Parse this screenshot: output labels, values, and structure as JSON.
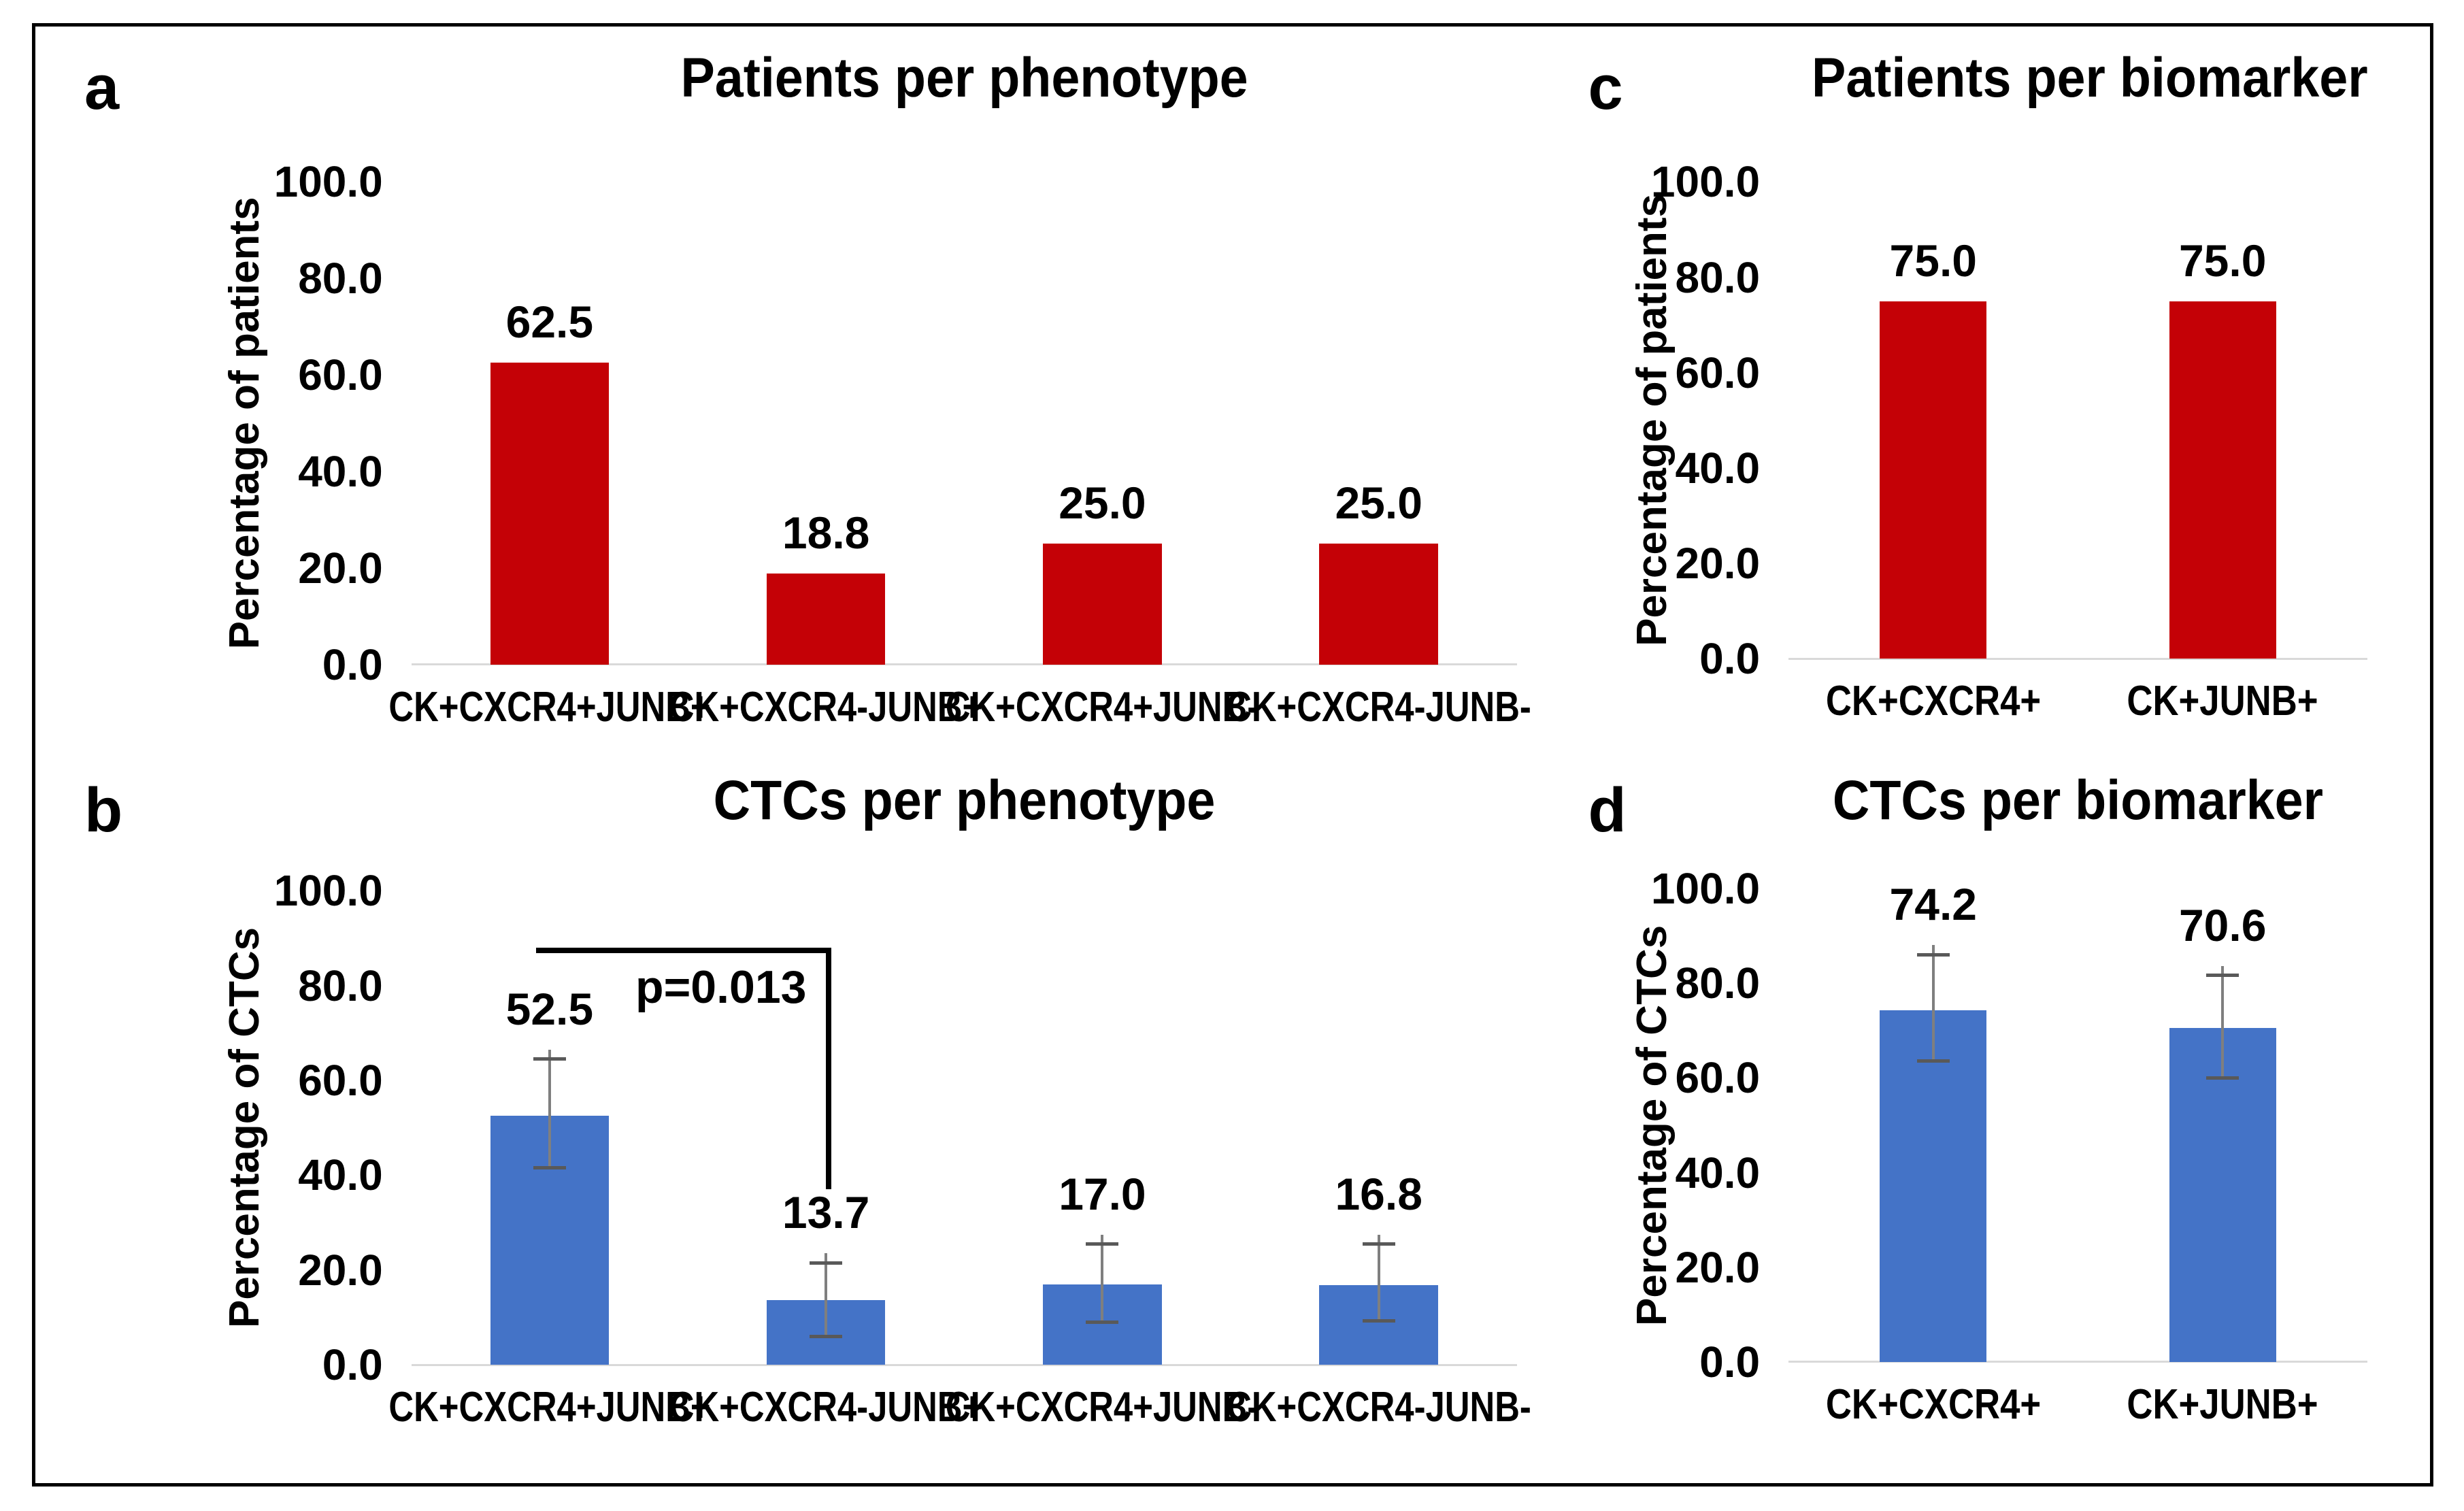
{
  "colors": {
    "bar_red": "#C40106",
    "bar_blue": "#4473C7",
    "error_bar_line": "#7F7F7F",
    "error_bar_cap": "#595959",
    "axis_baseline": "#D9D9D9",
    "bracket": "#000000",
    "text": "#000000",
    "border": "#000000"
  },
  "chart_data": [
    {
      "id": "a",
      "panel_label": "a",
      "type": "bar",
      "title": "Patients per phenotype",
      "ylabel": "Percentage of patients",
      "xlabel": "",
      "ylim": [
        0,
        100
      ],
      "yticks": [
        0,
        20,
        40,
        60,
        80,
        100
      ],
      "ytick_labels": [
        "0.0",
        "20.0",
        "40.0",
        "60.0",
        "80.0",
        "100.0"
      ],
      "grid": false,
      "legend": false,
      "categories": [
        "CK+CXCR4+JUNB+",
        "CK+CXCR4-JUNB+",
        "CK+CXCR4+JUNB-",
        "CK+CXCR4-JUNB-"
      ],
      "values": [
        62.5,
        18.8,
        25.0,
        25.0
      ],
      "value_labels": [
        "62.5",
        "18.8",
        "25.0",
        "25.0"
      ],
      "bar_color": "#C40106"
    },
    {
      "id": "b",
      "panel_label": "b",
      "type": "bar",
      "title": "CTCs per phenotype",
      "ylabel": "Percentage of CTCs",
      "xlabel": "",
      "ylim": [
        0,
        100
      ],
      "yticks": [
        0,
        20,
        40,
        60,
        80,
        100
      ],
      "ytick_labels": [
        "0.0",
        "20.0",
        "40.0",
        "60.0",
        "80.0",
        "100.0"
      ],
      "grid": false,
      "legend": false,
      "categories": [
        "CK+CXCR4+JUNB+",
        "CK+CXCR4-JUNB+",
        "CK+CXCR4+JUNB-",
        "CK+CXCR4-JUNB-"
      ],
      "values": [
        52.5,
        13.7,
        17.0,
        16.8
      ],
      "value_labels": [
        "52.5",
        "13.7",
        "17.0",
        "16.8"
      ],
      "error_plus": [
        12.0,
        7.8,
        8.5,
        8.7
      ],
      "error_minus": [
        11.0,
        7.7,
        8.0,
        7.5
      ],
      "bar_color": "#4473C7",
      "annotation": {
        "text": "p=0.013",
        "between": [
          0,
          1
        ],
        "bracket_y": 88,
        "bracket_drop_y": 37
      }
    },
    {
      "id": "c",
      "panel_label": "c",
      "type": "bar",
      "title": "Patients per biomarker",
      "ylabel": "Percentage of patients",
      "xlabel": "",
      "ylim": [
        0,
        100
      ],
      "yticks": [
        0,
        20,
        40,
        60,
        80,
        100
      ],
      "ytick_labels": [
        "0.0",
        "20.0",
        "40.0",
        "60.0",
        "80.0",
        "100.0"
      ],
      "grid": false,
      "legend": false,
      "categories": [
        "CK+CXCR4+",
        "CK+JUNB+"
      ],
      "values": [
        75.0,
        75.0
      ],
      "value_labels": [
        "75.0",
        "75.0"
      ],
      "bar_color": "#C40106"
    },
    {
      "id": "d",
      "panel_label": "d",
      "type": "bar",
      "title": "CTCs per biomarker",
      "ylabel": "Percentage of CTCs",
      "xlabel": "",
      "ylim": [
        0,
        100
      ],
      "yticks": [
        0,
        20,
        40,
        60,
        80,
        100
      ],
      "ytick_labels": [
        "0.0",
        "20.0",
        "40.0",
        "60.0",
        "80.0",
        "100.0"
      ],
      "grid": false,
      "legend": false,
      "categories": [
        "CK+CXCR4+",
        "CK+JUNB+"
      ],
      "values": [
        74.2,
        70.6
      ],
      "value_labels": [
        "74.2",
        "70.6"
      ],
      "error_plus": [
        11.8,
        11.0
      ],
      "error_minus": [
        10.7,
        10.6
      ],
      "bar_color": "#4473C7"
    }
  ]
}
